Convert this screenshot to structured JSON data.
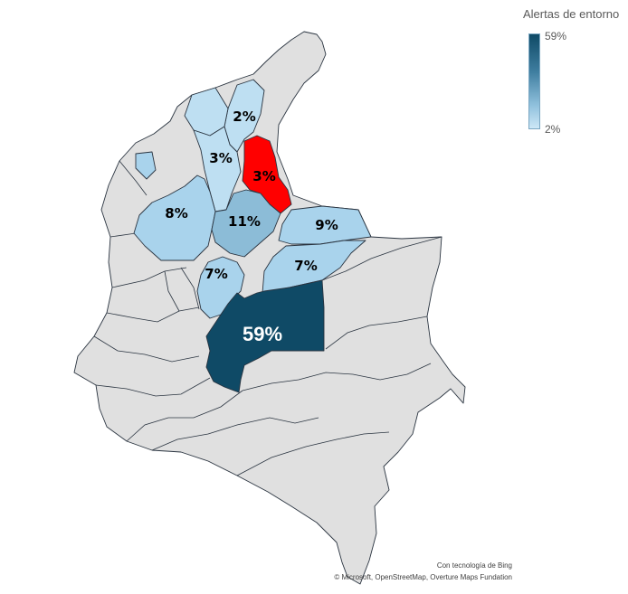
{
  "legend": {
    "title": "Alertas de entorno",
    "max_label": "59%",
    "min_label": "2%",
    "gradient_colors": [
      "#0f4a66",
      "#cde7f6"
    ]
  },
  "colors": {
    "base_region": "#e0e0e0",
    "border": "#2a3440",
    "highlight": "#ff0000"
  },
  "regions": [
    {
      "label": "2%",
      "value": 2
    },
    {
      "label": "3%",
      "value": 3
    },
    {
      "label": "3%",
      "value": 3,
      "highlighted": true
    },
    {
      "label": "8%",
      "value": 8
    },
    {
      "label": "11%",
      "value": 11
    },
    {
      "label": "9%",
      "value": 9
    },
    {
      "label": "7%",
      "value": 7
    },
    {
      "label": "7%",
      "value": 7
    },
    {
      "label": "59%",
      "value": 59
    }
  ],
  "attribution": {
    "line1": "Con tecnología de Bing",
    "line2": "© Microsoft, OpenStreetMap, Overture Maps Fundation"
  }
}
